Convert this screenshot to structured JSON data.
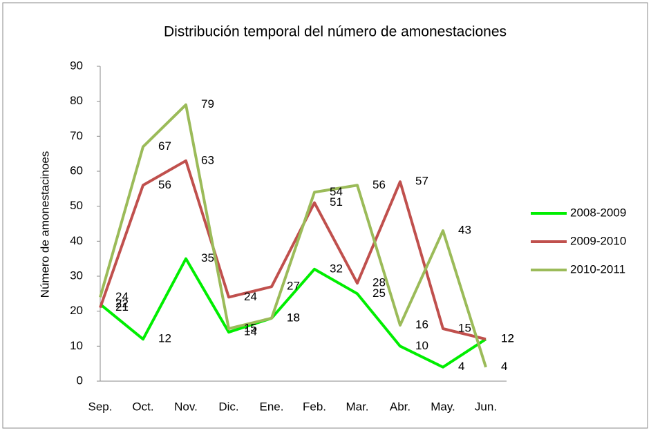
{
  "chart_data": {
    "type": "line",
    "title": "Distribución temporal del número de amonestaciones",
    "y_label": "Número de amonestacinoes",
    "categories": [
      "Sep.",
      "Oct.",
      "Nov.",
      "Dic.",
      "Ene.",
      "Feb.",
      "Mar.",
      "Abr.",
      "May.",
      "Jun."
    ],
    "series": [
      {
        "name": "2008-2009",
        "color": "#00ee00",
        "values": [
          22,
          12,
          35,
          14,
          18,
          32,
          25,
          10,
          4,
          12
        ]
      },
      {
        "name": "2009-2010",
        "color": "#c0504d",
        "values": [
          21,
          56,
          63,
          24,
          27,
          51,
          28,
          57,
          15,
          12
        ]
      },
      {
        "name": "2010-2011",
        "color": "#9bbb59",
        "values": [
          24,
          67,
          79,
          15,
          18,
          54,
          56,
          16,
          43,
          4
        ]
      }
    ],
    "ylim": [
      0,
      90
    ],
    "yticks": [
      0,
      10,
      20,
      30,
      40,
      50,
      60,
      70,
      80,
      90
    ],
    "grid": false,
    "legend": "right",
    "data_labels": true
  }
}
